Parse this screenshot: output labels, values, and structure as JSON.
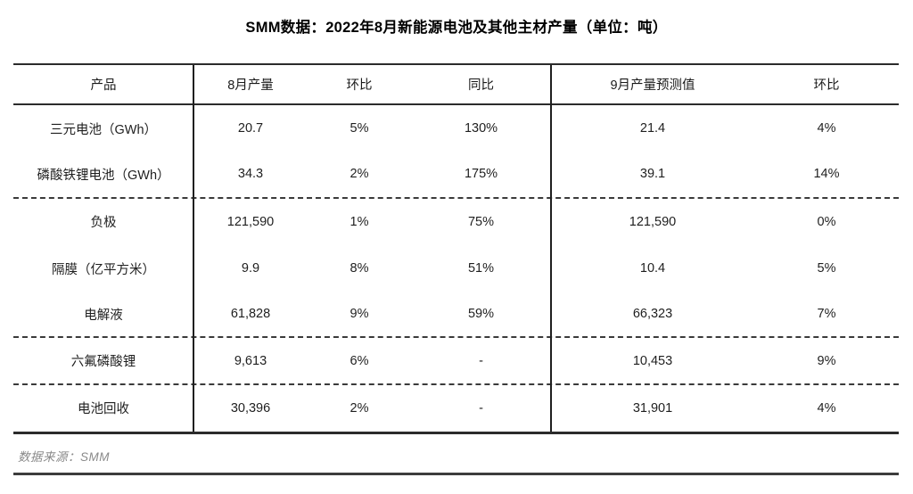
{
  "title": "SMM数据：2022年8月新能源电池及其他主材产量（单位：吨）",
  "source_note": "数据来源：SMM",
  "colors": {
    "background": "#ffffff",
    "table_text": "#1f1f1f",
    "border": "#2b2b2b",
    "muted_text": "#8a8a8a",
    "footer_rule": "#3d3d3d"
  },
  "chart_data": {
    "type": "table",
    "title": "SMM数据：2022年8月新能源电池及其他主材产量（单位：吨）",
    "columns": [
      "产品",
      "8月产量",
      "环比",
      "同比",
      "9月产量预测值",
      "环比"
    ],
    "rows": [
      [
        "三元电池（GWh）",
        "20.7",
        "5%",
        "130%",
        "21.4",
        "4%"
      ],
      [
        "磷酸铁锂电池（GWh）",
        "34.3",
        "2%",
        "175%",
        "39.1",
        "14%"
      ],
      [
        "负极",
        "121,590",
        "1%",
        "75%",
        "121,590",
        "0%"
      ],
      [
        "隔膜（亿平方米）",
        "9.9",
        "8%",
        "51%",
        "10.4",
        "5%"
      ],
      [
        "电解液",
        "61,828",
        "9%",
        "59%",
        "66,323",
        "7%"
      ],
      [
        "六氟磷酸锂",
        "9,613",
        "6%",
        "-",
        "10,453",
        "9%"
      ],
      [
        "电池回收",
        "30,396",
        "2%",
        "-",
        "31,901",
        "4%"
      ]
    ],
    "dashed_divider_after_row_indexes": [
      1,
      4,
      5
    ],
    "layout": {
      "header_divider": "solid",
      "outer_borders": "top-and-bottom-only",
      "vertical_dividers_after_columns": [
        0,
        3
      ]
    },
    "source": "数据来源：SMM"
  }
}
